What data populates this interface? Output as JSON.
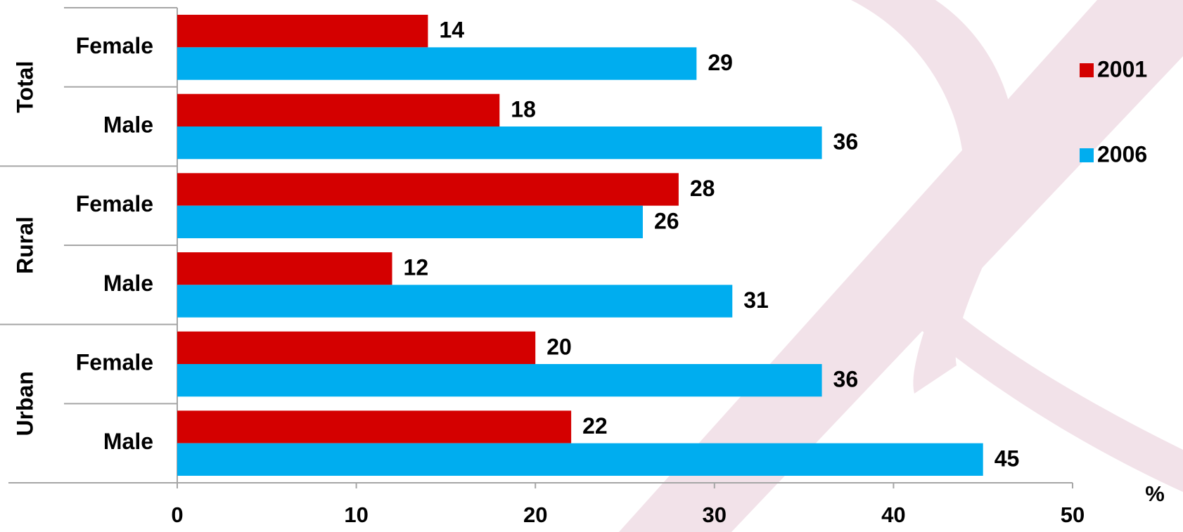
{
  "chart_data": {
    "type": "bar",
    "orientation": "horizontal",
    "groups": [
      "Total",
      "Rural",
      "Urban"
    ],
    "categories": [
      "Female",
      "Male",
      "Female",
      "Male",
      "Female",
      "Male"
    ],
    "series": [
      {
        "name": "2001",
        "color": "#d40000",
        "values": [
          14,
          18,
          28,
          12,
          20,
          22
        ]
      },
      {
        "name": "2006",
        "color": "#00adef",
        "values": [
          29,
          36,
          26,
          31,
          36,
          45
        ]
      }
    ],
    "xlabel": "%",
    "xlim": [
      0,
      50
    ],
    "xticks": [
      0,
      10,
      20,
      30,
      40,
      50
    ],
    "legend": "right"
  }
}
